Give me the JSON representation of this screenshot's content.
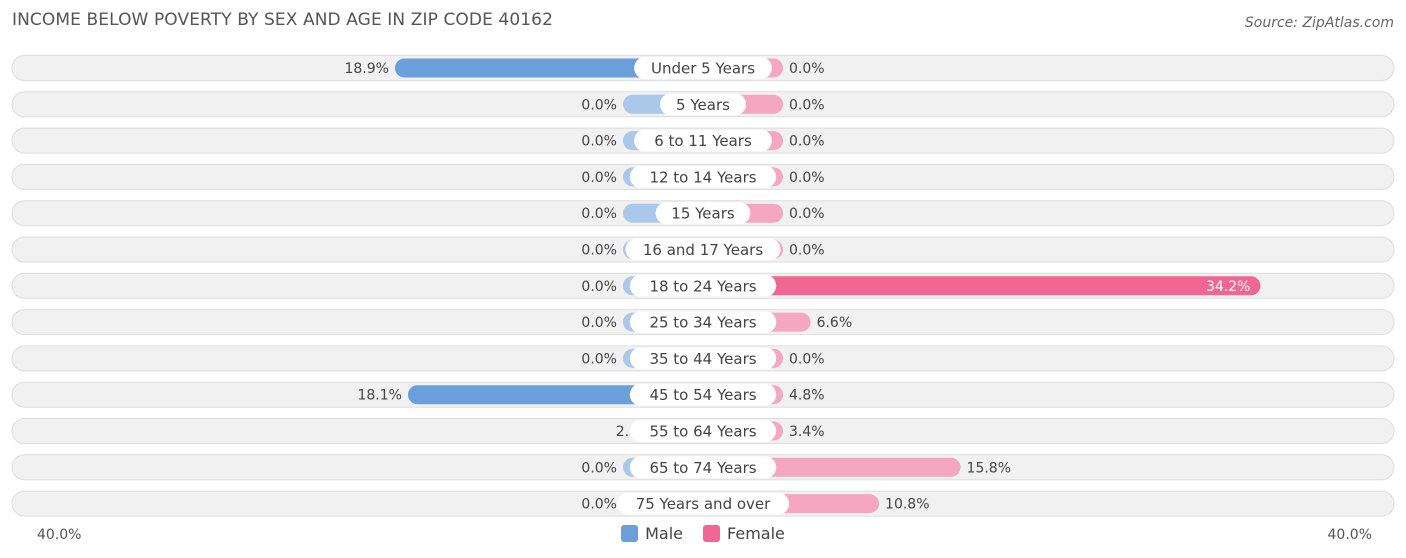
{
  "header": {
    "title": "INCOME BELOW POVERTY BY SEX AND AGE IN ZIP CODE 40162",
    "source": "Source: ZipAtlas.com"
  },
  "legend": {
    "male_label": "Male",
    "female_label": "Female"
  },
  "axis": {
    "left_label": "40.0%",
    "right_label": "40.0%"
  },
  "colors": {
    "male_strong": "#6a9fdc",
    "male_light": "#a9c8ea",
    "female_strong": "#f06793",
    "female_light": "#f5a6c0",
    "row_bg": "#f1f1f1",
    "row_border": "#dddddd"
  },
  "chart_data": {
    "type": "bar",
    "orientation": "horizontal-diverging",
    "title": "INCOME BELOW POVERTY BY SEX AND AGE IN ZIP CODE 40162",
    "xlim": [
      -40,
      40
    ],
    "categories": [
      "Under 5 Years",
      "5 Years",
      "6 to 11 Years",
      "12 to 14 Years",
      "15 Years",
      "16 and 17 Years",
      "18 to 24 Years",
      "25 to 34 Years",
      "35 to 44 Years",
      "45 to 54 Years",
      "55 to 64 Years",
      "65 to 74 Years",
      "75 Years and over"
    ],
    "series": [
      {
        "name": "Male",
        "values": [
          18.9,
          0.0,
          0.0,
          0.0,
          0.0,
          0.0,
          0.0,
          0.0,
          0.0,
          18.1,
          2.8,
          0.0,
          0.0
        ],
        "labels": [
          "18.9%",
          "0.0%",
          "0.0%",
          "0.0%",
          "0.0%",
          "0.0%",
          "0.0%",
          "0.0%",
          "0.0%",
          "18.1%",
          "2.8%",
          "0.0%",
          "0.0%"
        ]
      },
      {
        "name": "Female",
        "values": [
          0.0,
          0.0,
          0.0,
          0.0,
          0.0,
          0.0,
          34.2,
          6.6,
          0.0,
          4.8,
          3.4,
          15.8,
          10.8
        ],
        "labels": [
          "0.0%",
          "0.0%",
          "0.0%",
          "0.0%",
          "0.0%",
          "0.0%",
          "34.2%",
          "6.6%",
          "0.0%",
          "4.8%",
          "3.4%",
          "15.8%",
          "10.8%"
        ]
      }
    ],
    "legend_position": "bottom-center",
    "grid": false
  }
}
